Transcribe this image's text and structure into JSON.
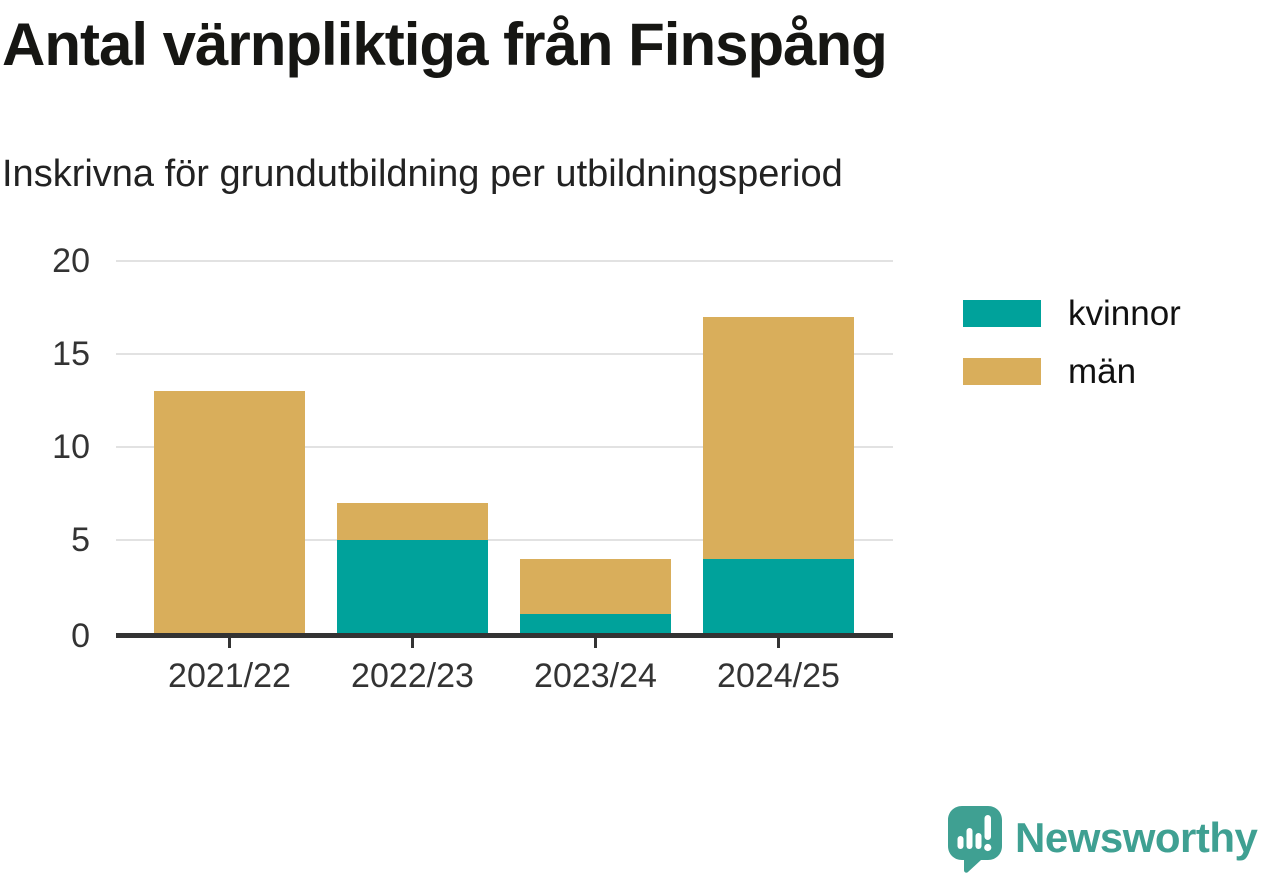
{
  "title": "Antal värnpliktiga från Finspång",
  "subtitle": "Inskrivna för grundutbildning per utbildningsperiod",
  "colors": {
    "kvinnor": "#00A29B",
    "man": "#D9AE5B",
    "axis": "#333333",
    "grid": "#e2e2e2",
    "text": "#333333",
    "logo": "#3FA092"
  },
  "chart_data": {
    "type": "bar",
    "stacked": true,
    "title": "Antal värnpliktiga från Finspång",
    "subtitle": "Inskrivna för grundutbildning per utbildningsperiod",
    "categories": [
      "2021/22",
      "2022/23",
      "2023/24",
      "2024/25"
    ],
    "series": [
      {
        "name": "kvinnor",
        "color": "#00A29B",
        "values": [
          0,
          5,
          1,
          4
        ]
      },
      {
        "name": "män",
        "color": "#D9AE5B",
        "values": [
          13,
          2,
          3,
          13
        ]
      }
    ],
    "totals": [
      13,
      7,
      4,
      17
    ],
    "xlabel": "",
    "ylabel": "",
    "ylim": [
      0,
      20
    ],
    "yticks": [
      0,
      5,
      10,
      15,
      20
    ],
    "grid": true,
    "legend_position": "right"
  },
  "legend": {
    "items": [
      {
        "label": "kvinnor",
        "color": "#00A29B"
      },
      {
        "label": "män",
        "color": "#D9AE5B"
      }
    ]
  },
  "branding": {
    "name": "Newsworthy"
  }
}
